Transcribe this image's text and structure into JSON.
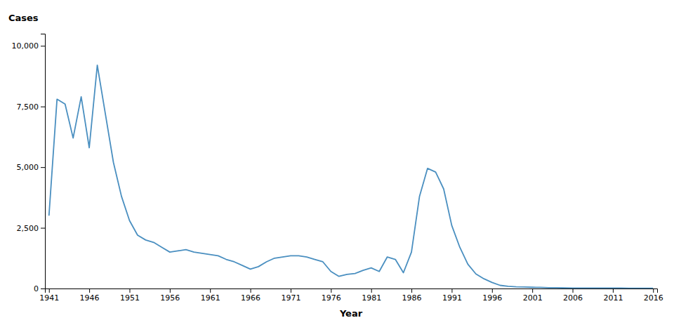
{
  "chart_data": {
    "type": "line",
    "xlabel": "Year",
    "ylabel": "Cases",
    "x": [
      1941,
      1942,
      1943,
      1944,
      1945,
      1946,
      1947,
      1948,
      1949,
      1950,
      1951,
      1952,
      1953,
      1954,
      1955,
      1956,
      1957,
      1958,
      1959,
      1960,
      1961,
      1962,
      1963,
      1964,
      1965,
      1966,
      1967,
      1968,
      1969,
      1970,
      1971,
      1972,
      1973,
      1974,
      1975,
      1976,
      1977,
      1978,
      1979,
      1980,
      1981,
      1982,
      1983,
      1984,
      1985,
      1986,
      1987,
      1988,
      1989,
      1990,
      1991,
      1992,
      1993,
      1994,
      1995,
      1996,
      1997,
      1998,
      1999,
      2000,
      2001,
      2002,
      2003,
      2004,
      2005,
      2006,
      2007,
      2008,
      2009,
      2010,
      2011,
      2012,
      2013,
      2014,
      2015,
      2016
    ],
    "values": [
      3000,
      7800,
      7600,
      6200,
      7900,
      5800,
      9200,
      7200,
      5200,
      3800,
      2800,
      2200,
      2000,
      1900,
      1700,
      1500,
      1550,
      1600,
      1500,
      1450,
      1400,
      1350,
      1200,
      1100,
      950,
      800,
      900,
      1100,
      1250,
      1300,
      1350,
      1350,
      1300,
      1200,
      1100,
      700,
      500,
      580,
      620,
      750,
      850,
      700,
      1300,
      1200,
      650,
      1500,
      3800,
      4950,
      4800,
      4100,
      2600,
      1700,
      1000,
      600,
      400,
      250,
      130,
      90,
      70,
      60,
      50,
      45,
      35,
      30,
      25,
      20,
      20,
      20,
      20,
      15,
      15,
      15,
      10,
      10,
      10,
      10
    ],
    "color": "#4A8FC0",
    "xlim": [
      1940.5,
      2016.5
    ],
    "xticks": [
      1941,
      1946,
      1951,
      1956,
      1961,
      1966,
      1971,
      1976,
      1981,
      1986,
      1991,
      1996,
      2001,
      2006,
      2011,
      2016
    ],
    "ylim": [
      0,
      10500
    ],
    "yticks": [
      0,
      {
        "value": 2500,
        "label": "2,500"
      },
      {
        "value": 5000,
        "label": "5,000"
      },
      {
        "value": 7500,
        "label": "7,500"
      },
      {
        "value": 10000,
        "label": "10,000"
      }
    ],
    "grid": false
  }
}
